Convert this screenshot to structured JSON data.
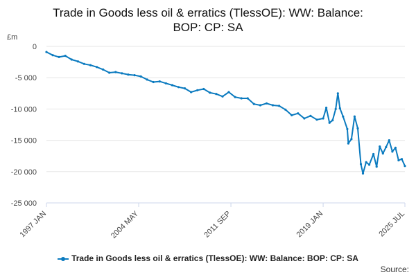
{
  "chart_data": {
    "type": "line",
    "title": "Trade in Goods less oil & erratics (TlessOE): WW: Balance: BOP: CP: SA",
    "ylabel": "£m",
    "ylim": [
      -25000,
      0
    ],
    "yticks": [
      0,
      -5000,
      -10000,
      -15000,
      -20000,
      -25000
    ],
    "ytick_labels": [
      "0",
      "-5 000",
      "-10 000",
      "-15 000",
      "-20 000",
      "-25 000"
    ],
    "xrange": [
      "1997-01",
      "2025-07"
    ],
    "xtick_labels": [
      "1997 JAN",
      "2004 MAY",
      "2011 SEP",
      "2019 JAN",
      "2025 JUL"
    ],
    "xtick_dates": [
      "1997-01",
      "2004-05",
      "2011-09",
      "2019-01",
      "2025-07"
    ],
    "grid": true,
    "legend": "bottom",
    "series": [
      {
        "name": "Trade in Goods less oil & erratics (TlessOE): WW: Balance: BOP: CP: SA",
        "color": "#0a7abf",
        "points": [
          [
            "1997-01",
            -900
          ],
          [
            "1997-07",
            -1400
          ],
          [
            "1998-01",
            -1700
          ],
          [
            "1998-07",
            -1500
          ],
          [
            "1999-01",
            -2100
          ],
          [
            "1999-07",
            -2400
          ],
          [
            "2000-01",
            -2800
          ],
          [
            "2000-07",
            -3000
          ],
          [
            "2001-01",
            -3300
          ],
          [
            "2001-07",
            -3700
          ],
          [
            "2002-01",
            -4200
          ],
          [
            "2002-07",
            -4100
          ],
          [
            "2003-01",
            -4300
          ],
          [
            "2003-07",
            -4500
          ],
          [
            "2004-01",
            -4600
          ],
          [
            "2004-07",
            -4800
          ],
          [
            "2005-01",
            -5300
          ],
          [
            "2005-07",
            -5700
          ],
          [
            "2006-01",
            -5600
          ],
          [
            "2006-07",
            -5900
          ],
          [
            "2007-01",
            -6200
          ],
          [
            "2007-07",
            -6500
          ],
          [
            "2008-01",
            -6700
          ],
          [
            "2008-07",
            -7300
          ],
          [
            "2009-01",
            -7000
          ],
          [
            "2009-07",
            -6800
          ],
          [
            "2010-01",
            -7400
          ],
          [
            "2010-07",
            -7600
          ],
          [
            "2011-01",
            -8000
          ],
          [
            "2011-07",
            -7300
          ],
          [
            "2012-01",
            -8100
          ],
          [
            "2012-07",
            -8300
          ],
          [
            "2013-01",
            -8300
          ],
          [
            "2013-07",
            -9200
          ],
          [
            "2014-01",
            -9400
          ],
          [
            "2014-07",
            -9100
          ],
          [
            "2015-01",
            -9400
          ],
          [
            "2015-07",
            -9500
          ],
          [
            "2016-01",
            -10100
          ],
          [
            "2016-07",
            -11000
          ],
          [
            "2017-01",
            -10700
          ],
          [
            "2017-07",
            -11500
          ],
          [
            "2018-01",
            -11100
          ],
          [
            "2018-07",
            -11700
          ],
          [
            "2019-01",
            -11500
          ],
          [
            "2019-04",
            -9800
          ],
          [
            "2019-07",
            -12200
          ],
          [
            "2019-10",
            -11800
          ],
          [
            "2020-01",
            -10000
          ],
          [
            "2020-03",
            -7500
          ],
          [
            "2020-05",
            -9900
          ],
          [
            "2020-08",
            -11200
          ],
          [
            "2020-12",
            -13200
          ],
          [
            "2021-01",
            -15500
          ],
          [
            "2021-04",
            -14800
          ],
          [
            "2021-07",
            -11200
          ],
          [
            "2021-10",
            -13100
          ],
          [
            "2022-01",
            -18800
          ],
          [
            "2022-03",
            -20300
          ],
          [
            "2022-06",
            -18500
          ],
          [
            "2022-09",
            -18900
          ],
          [
            "2023-01",
            -17200
          ],
          [
            "2023-04",
            -19200
          ],
          [
            "2023-07",
            -16000
          ],
          [
            "2023-10",
            -17100
          ],
          [
            "2024-01",
            -16100
          ],
          [
            "2024-04",
            -15000
          ],
          [
            "2024-07",
            -16800
          ],
          [
            "2024-10",
            -16200
          ],
          [
            "2025-01",
            -18200
          ],
          [
            "2025-04",
            -18000
          ],
          [
            "2025-07",
            -19100
          ]
        ]
      }
    ]
  },
  "legend": {
    "label": "Trade in Goods less oil & erratics (TlessOE): WW: Balance: BOP: CP: SA"
  },
  "footer": {
    "source_label": "Source:"
  }
}
